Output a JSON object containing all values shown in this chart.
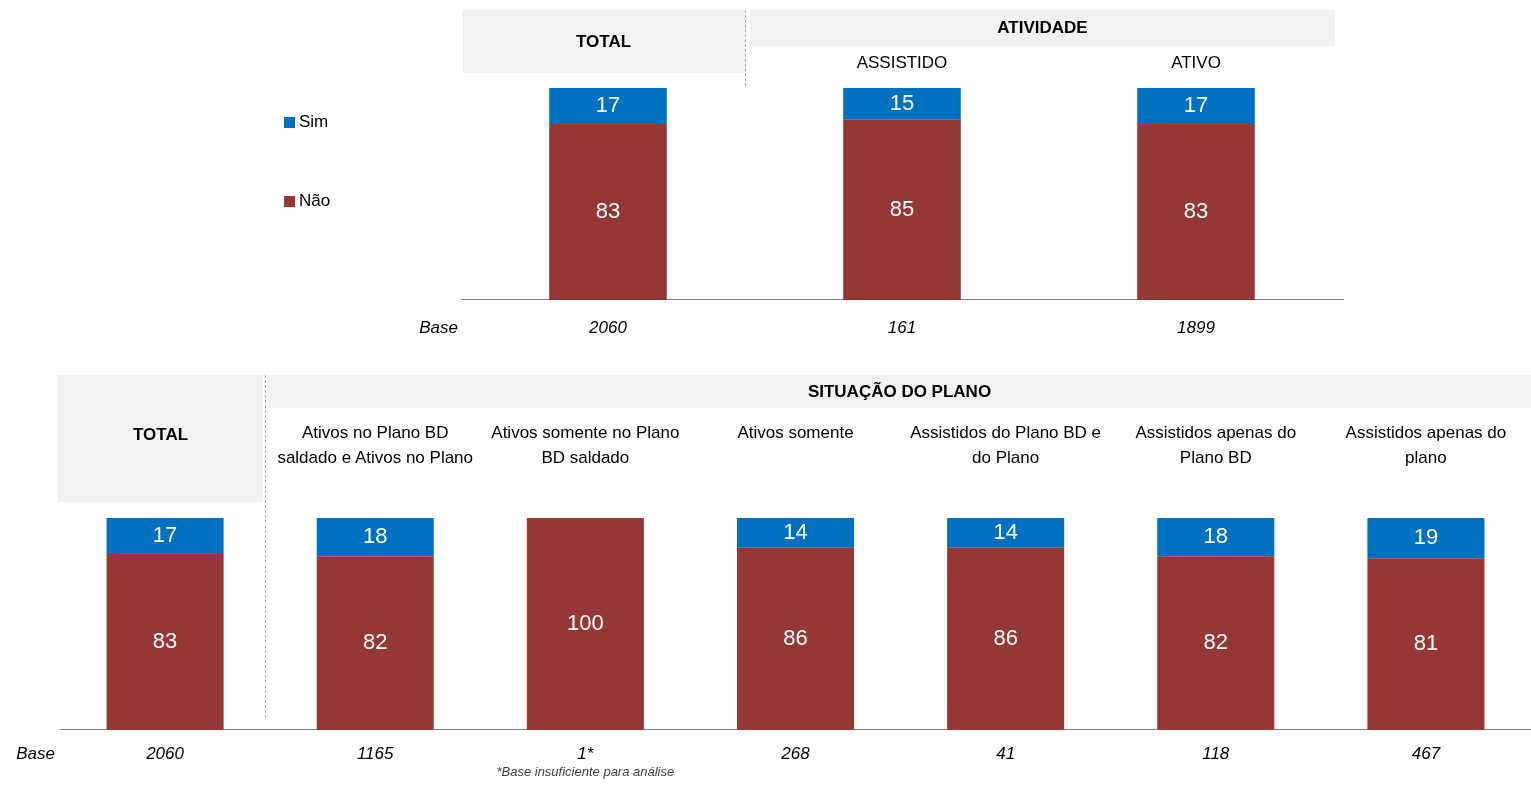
{
  "chart_data": [
    {
      "type": "bar",
      "stacked": true,
      "data_labels": true,
      "legend": "left",
      "grid": false,
      "categories": [
        "TOTAL",
        "ASSISTIDO",
        "ATIVO"
      ],
      "series": [
        {
          "name": "Não",
          "color": "#953735",
          "values": [
            83,
            85,
            83
          ]
        },
        {
          "name": "Sim",
          "color": "#0070c0",
          "values": [
            17,
            15,
            17
          ]
        }
      ],
      "annotations": [
        "ATIVIDADE",
        "Base",
        "2060",
        "161",
        "1899"
      ]
    },
    {
      "type": "bar",
      "stacked": true,
      "data_labels": true,
      "legend": false,
      "grid": false,
      "categories": [
        "TOTAL",
        "Ativos no Plano BD saldado e Ativos no Plano",
        "Ativos somente no Plano BD saldado",
        "Ativos somente",
        "Assistidos do Plano BD e do Plano",
        "Assistidos apenas do Plano BD",
        "Assistidos apenas do plano"
      ],
      "series": [
        {
          "color": "#953735",
          "values": [
            83,
            82,
            100,
            86,
            86,
            82,
            81
          ]
        },
        {
          "color": "#0070c0",
          "values": [
            17,
            18,
            null,
            14,
            14,
            18,
            19
          ]
        }
      ],
      "annotations": [
        "SITUAÇÃO DO PLANO",
        "Base",
        "2060",
        "1165",
        "1*",
        "268",
        "41",
        "118",
        "467",
        "*Base insuficiente para análise"
      ]
    }
  ]
}
